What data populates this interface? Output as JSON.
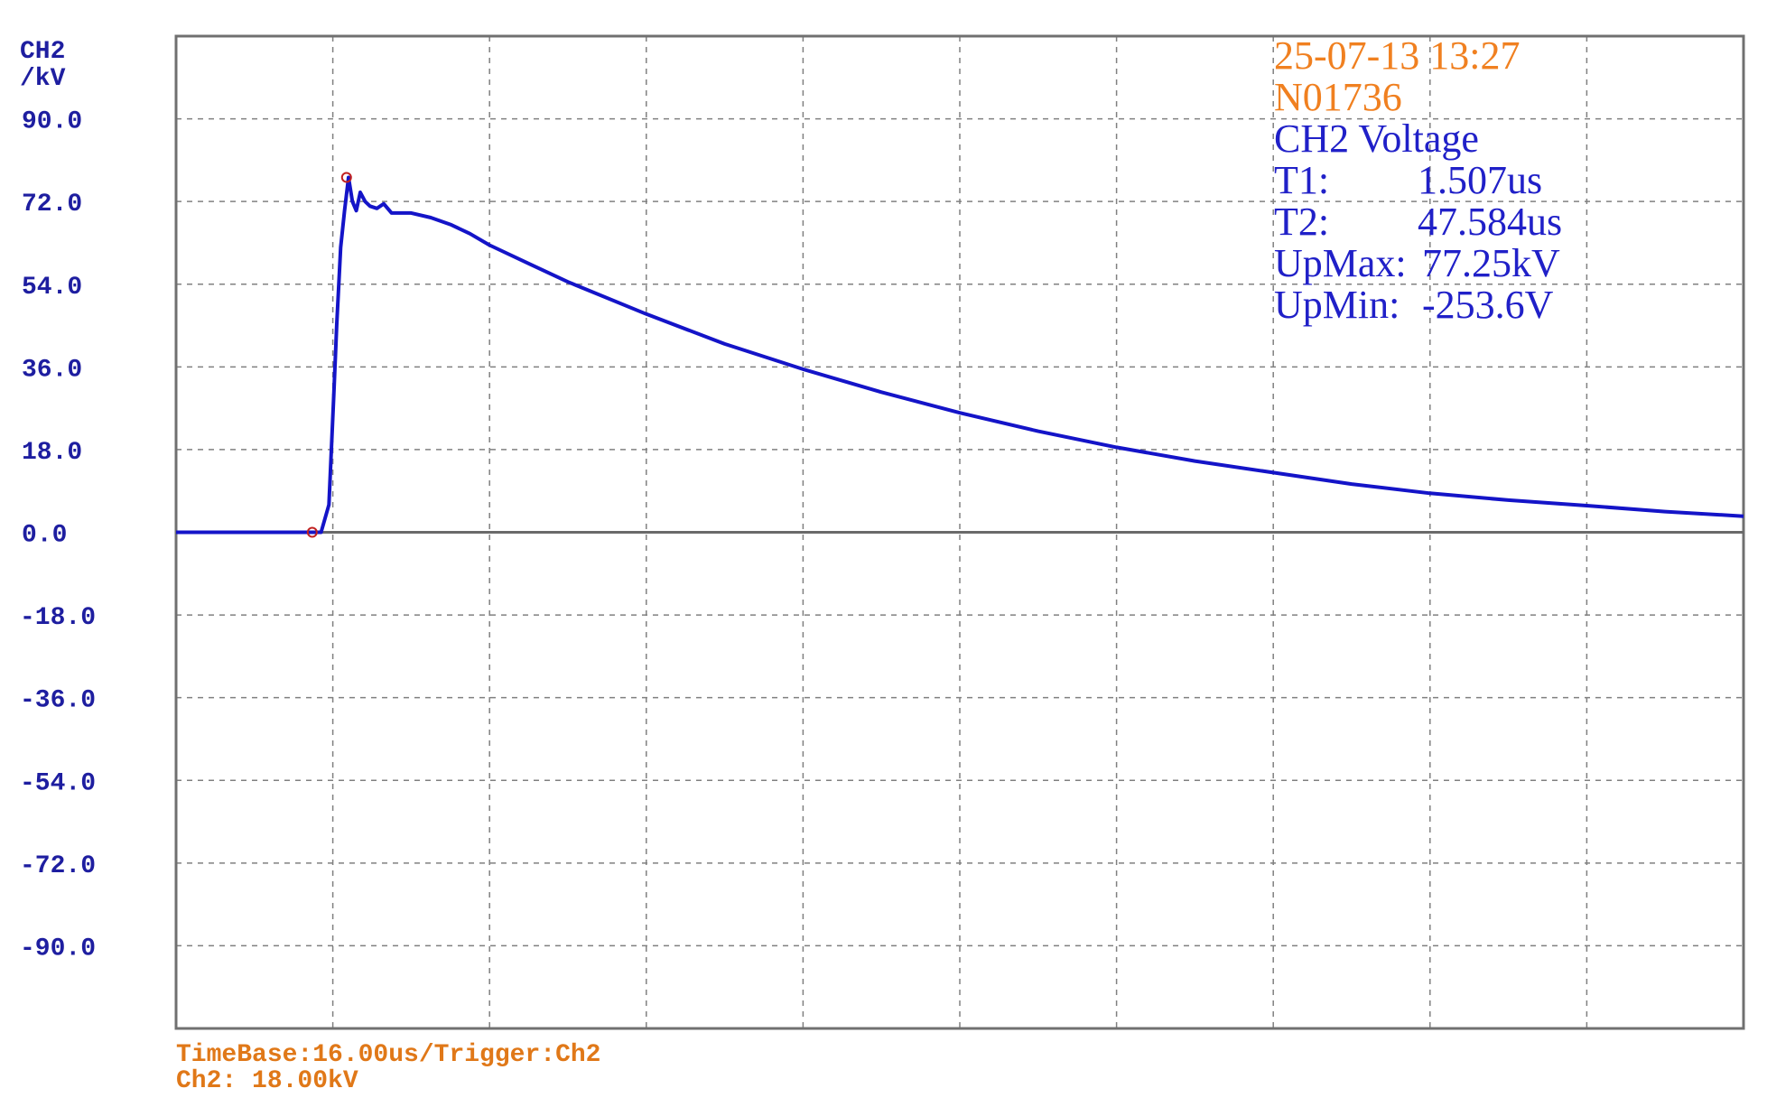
{
  "channel_label": "CH2",
  "unit_label": "/kV",
  "header": {
    "datetime": "25-07-13 13:27",
    "record_no": "N01736",
    "title": "CH2 Voltage"
  },
  "measurements": [
    {
      "label": "T1:",
      "value": "1.507us"
    },
    {
      "label": "T2:",
      "value": "47.584us"
    },
    {
      "label": "UpMax:",
      "value": "77.25kV"
    },
    {
      "label": "UpMin:",
      "value": "-253.6V"
    }
  ],
  "footer": {
    "timebase": "TimeBase:16.00us/Trigger:Ch2",
    "channel_scale": "Ch2: 18.00kV"
  },
  "colors": {
    "trace": "#1414c8",
    "axis_labels": "#1e1ea0",
    "info_orange": "#f08020",
    "info_blue": "#2020c8",
    "footer_orange": "#e07818",
    "grid": "#808080",
    "frame": "#707070",
    "marker": "#c02020"
  },
  "chart_data": {
    "type": "line",
    "title": "CH2 Voltage",
    "ylabel": "CH2 /kV",
    "xlabel": "",
    "ylim": [
      -108,
      108
    ],
    "xlim": [
      0,
      160
    ],
    "x_unit": "us",
    "y_ticks": [
      90,
      72,
      54,
      36,
      18,
      0,
      -18,
      -36,
      -54,
      -72,
      -90
    ],
    "y_tick_labels": [
      "90.0",
      "72.0",
      "54.0",
      "36.0",
      "18.0",
      "0.0",
      "-18.0",
      "-36.0",
      "-54.0",
      "-72.0",
      "-90.0"
    ],
    "x_gridlines": 10,
    "grid": true,
    "series": [
      {
        "x": [
          0,
          14.8,
          15.6,
          16.1,
          16.4,
          16.8,
          17.2,
          17.6,
          18.0,
          18.4,
          18.8,
          19.3,
          19.8,
          20.5,
          21.2,
          22,
          24,
          26,
          28,
          30,
          32,
          36,
          40,
          48,
          56,
          64,
          72,
          80,
          88,
          96,
          104,
          112,
          120,
          128,
          136,
          144,
          152,
          160
        ],
        "y": [
          0,
          0,
          6,
          30,
          45,
          62,
          70,
          77.25,
          72,
          70,
          74,
          72,
          71,
          70.5,
          71.5,
          69.5,
          69.5,
          68.5,
          67,
          65,
          62.5,
          58.5,
          54.5,
          47.5,
          41,
          35.5,
          30.5,
          26,
          22,
          18.5,
          15.5,
          13,
          10.5,
          8.5,
          7,
          5.8,
          4.5,
          3.5
        ]
      }
    ],
    "markers": [
      {
        "x": 13.9,
        "y": 0
      },
      {
        "x": 17.4,
        "y": 77.25
      }
    ]
  }
}
